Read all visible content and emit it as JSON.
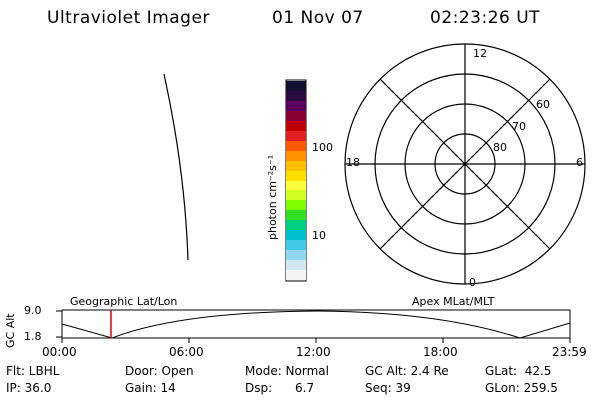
{
  "header": {
    "instrument": "Ultraviolet Imager",
    "date": "01 Nov 07",
    "time": "02:23:26 UT"
  },
  "colorbar": {
    "label": "photon cm⁻²s⁻¹",
    "tick_100": "100",
    "tick_10": "10",
    "colors": [
      "#101030",
      "#2a0a40",
      "#5a0060",
      "#8a0030",
      "#c00000",
      "#e02020",
      "#ff5a00",
      "#ff9000",
      "#ffc000",
      "#ffe000",
      "#ffff40",
      "#d0ff20",
      "#80ff00",
      "#30e020",
      "#00d080",
      "#00c0d0",
      "#40c8e8",
      "#90d8f0",
      "#d0e8f0",
      "#f4f4f4"
    ]
  },
  "polar": {
    "hour_top": "12",
    "hour_left": "18",
    "hour_right": "6",
    "hour_bottom": "0",
    "lat_60": "60",
    "lat_70": "70",
    "lat_80": "80"
  },
  "strip": {
    "ylabel": "GC Alt",
    "ytick_top": "9.0",
    "ytick_bottom": "1.8",
    "left_title": "Geographic Lat/Lon",
    "right_title": "Apex MLat/MLT",
    "xticks": [
      "00:00",
      "06:00",
      "12:00",
      "18:00",
      "23:59"
    ]
  },
  "status": {
    "flt": "Flt: LBHL",
    "ip": "IP: 36.0",
    "door": "Door: Open",
    "gain": "Gain: 14",
    "mode": "Mode: Normal",
    "dsp": "Dsp:      6.7",
    "gc_alt": "GC Alt: 2.4 Re",
    "seq": "Seq: 39",
    "glat": "GLat:  42.5",
    "glon": "GLon: 259.5"
  }
}
